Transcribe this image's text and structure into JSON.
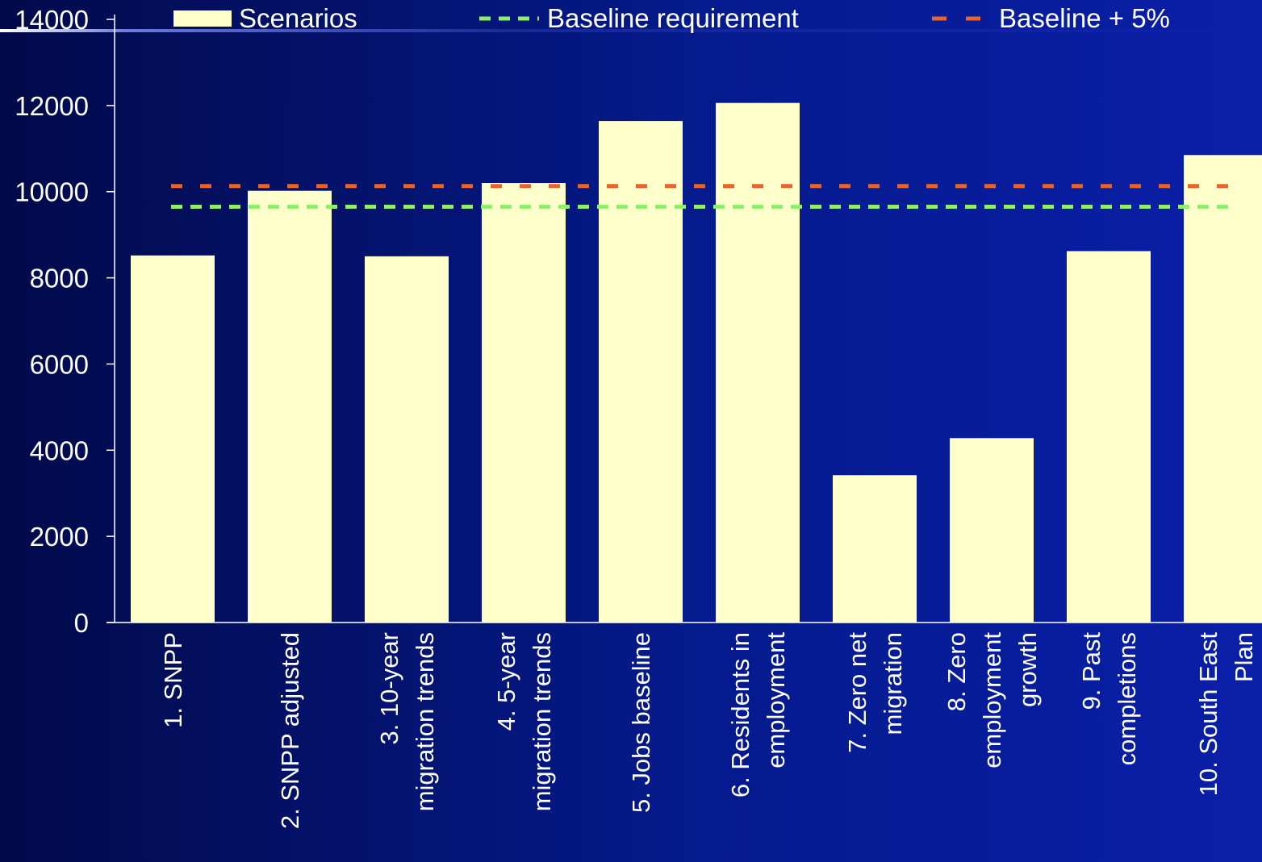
{
  "colors": {
    "bar": "#ffffcc",
    "baseline": "#8ef06a",
    "baseline_plus": "#e8642a",
    "text": "#ffffff",
    "axis": "#ffffff"
  },
  "legend": {
    "scenarios": "Scenarios",
    "baseline": "Baseline requirement",
    "baseline_plus": "Baseline + 5%"
  },
  "chart_data": {
    "type": "bar",
    "categories": [
      [
        "1. SNPP"
      ],
      [
        "2. SNPP adjusted"
      ],
      [
        "3. 10-year",
        "migration trends"
      ],
      [
        "4. 5-year",
        "migration trends"
      ],
      [
        "5. Jobs baseline"
      ],
      [
        "6. Residents in",
        "employment"
      ],
      [
        "7. Zero net",
        "migration"
      ],
      [
        "8. Zero",
        "employment",
        "growth"
      ],
      [
        "9. Past",
        "completions"
      ],
      [
        "10. South East",
        "Plan"
      ]
    ],
    "series": [
      {
        "name": "Scenarios",
        "values": [
          8520,
          10020,
          8500,
          10200,
          11640,
          12060,
          3420,
          4280,
          8620,
          10850
        ]
      }
    ],
    "reference_lines": [
      {
        "name": "Baseline requirement",
        "value": 9650,
        "style": "dashed"
      },
      {
        "name": "Baseline + 5%",
        "value": 10130,
        "style": "dashed"
      }
    ],
    "yticks": [
      0,
      2000,
      4000,
      6000,
      8000,
      10000,
      12000,
      14000
    ],
    "ylim": [
      0,
      14000
    ],
    "legend_position": "top",
    "grid": false
  }
}
